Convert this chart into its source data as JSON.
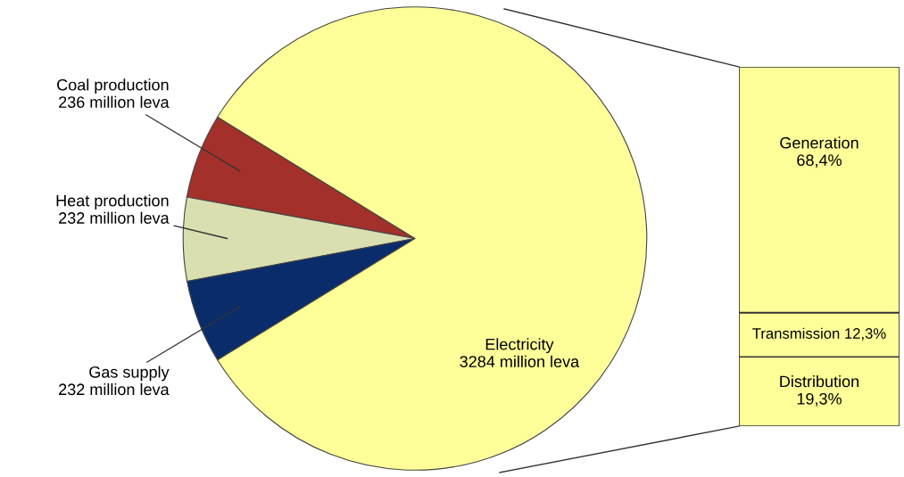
{
  "chart_data": [
    {
      "type": "pie",
      "categories": [
        "Coal production",
        "Heat production",
        "Gas supply",
        "Electricity"
      ],
      "values": [
        236,
        232,
        232,
        3284
      ],
      "value_labels": [
        "236 million leva",
        "232 million leva",
        "232 million leva",
        "3284 million leva"
      ],
      "colors": [
        "#a3302a",
        "#d9dfb0",
        "#0b2c6b",
        "#ffff99"
      ]
    },
    {
      "type": "bar",
      "stacked": true,
      "categories": [
        null
      ],
      "series": [
        {
          "name": "Distribution",
          "color": "#ffff99",
          "values": [
            19.3
          ],
          "value_labels": [
            "19,3%"
          ]
        },
        {
          "name": "Transmission",
          "color": "#ffff99",
          "values": [
            12.3
          ],
          "value_labels": [
            "12,3%"
          ]
        },
        {
          "name": "Generation",
          "color": "#ffff99",
          "values": [
            68.4
          ],
          "value_labels": [
            "68,4%"
          ]
        }
      ]
    }
  ]
}
